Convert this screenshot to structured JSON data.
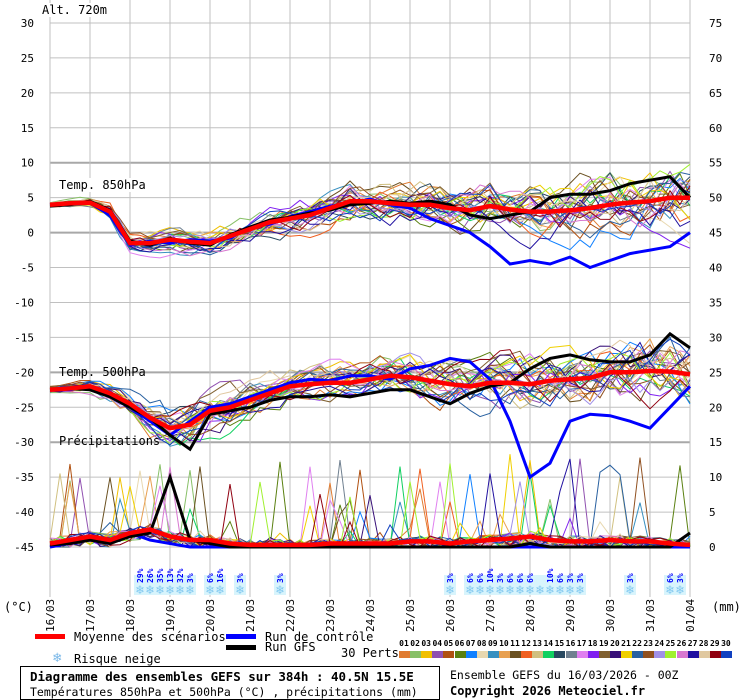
{
  "chart_data": {
    "type": "line",
    "title": "Diagramme des ensembles GEFS sur 384h : 40.5N 15.5E",
    "subtitle": "Températures 850hPa et 500hPa (°C) , précipitations (mm)",
    "left_axis": {
      "label": "(°C)",
      "range": [
        -45,
        30
      ],
      "ticks": [
        30,
        25,
        20,
        15,
        10,
        5,
        0,
        -5,
        -10,
        -15,
        -20,
        -25,
        -30,
        -35,
        -40,
        -45
      ]
    },
    "right_axis": {
      "label": "(mm)",
      "range": [
        0,
        75
      ],
      "ticks": [
        75,
        70,
        65,
        60,
        55,
        50,
        45,
        40,
        35,
        30,
        25,
        20,
        15,
        10,
        5,
        0
      ]
    },
    "x_step_hours": 12,
    "x_hours_range": [
      0,
      384
    ],
    "x_tick_labels": [
      "16/03",
      "17/03",
      "18/03",
      "19/03",
      "20/03",
      "21/03",
      "22/03",
      "23/03",
      "24/03",
      "25/03",
      "26/03",
      "27/03",
      "28/03",
      "29/03",
      "30/03",
      "31/03",
      "01/04"
    ],
    "panel_labels": {
      "t850": "Temp. 850hPa",
      "t500": "Temp. 500hPa",
      "precip": "Précipitations"
    },
    "altitude": "Alt. 720m",
    "t850": {
      "mean": [
        4,
        4.2,
        4.3,
        3,
        -1.5,
        -1.5,
        -1,
        -1.3,
        -1.5,
        -0.5,
        0.5,
        1.5,
        2,
        2.5,
        3.5,
        4.5,
        4.5,
        4.2,
        4,
        4,
        3.5,
        3.2,
        3.8,
        3.3,
        3,
        3,
        3.2,
        3.5,
        4,
        4.3,
        4.5,
        5,
        5
      ],
      "control": [
        4,
        4.3,
        4.2,
        2.5,
        -1.8,
        -1.2,
        -1.5,
        -1,
        -1.2,
        -0.8,
        0.8,
        1.2,
        2.3,
        3,
        3.8,
        4.2,
        4.8,
        4,
        3.5,
        2,
        1,
        0,
        -2,
        -4.5,
        -4,
        -4.5,
        -3.5,
        -5,
        -4,
        -3,
        -2.5,
        -2,
        0
      ],
      "gfs": [
        3.8,
        4,
        4.5,
        3.2,
        -1.2,
        -1.8,
        -0.8,
        -1.5,
        -1.8,
        -0.3,
        0.8,
        1.8,
        2.2,
        2.8,
        3.2,
        4,
        4.2,
        4.5,
        4.2,
        4.5,
        4,
        2.5,
        2,
        2.5,
        3,
        5,
        5.5,
        5.5,
        6,
        7,
        7.5,
        8,
        5
      ],
      "spread": [
        0.3,
        0.4,
        0.5,
        0.8,
        1,
        1,
        1.1,
        1.2,
        1.2,
        1.3,
        1.4,
        1.5,
        1.6,
        1.7,
        1.8,
        2,
        2,
        2.1,
        2.2,
        2.3,
        2.4,
        2.5,
        2.6,
        2.7,
        2.8,
        2.9,
        3,
        3.1,
        3.2,
        3.3,
        3.4,
        3.5,
        3.6
      ]
    },
    "t500": {
      "mean": [
        -22.5,
        -22.3,
        -22,
        -23,
        -24.5,
        -26.5,
        -28,
        -27.5,
        -25.5,
        -25,
        -24,
        -23,
        -22,
        -21.7,
        -21.5,
        -21.5,
        -21,
        -20.5,
        -20.7,
        -21.2,
        -21.7,
        -22,
        -21.5,
        -21.5,
        -21.7,
        -21.2,
        -21,
        -20.8,
        -20,
        -20,
        -19.8,
        -19.9,
        -20.3
      ],
      "control": [
        -22.5,
        -22.5,
        -22,
        -23.5,
        -25,
        -27,
        -29,
        -27,
        -25,
        -24.5,
        -23.5,
        -22.5,
        -21.5,
        -21,
        -21.2,
        -20.5,
        -20.5,
        -21,
        -19.5,
        -19,
        -18,
        -18.5,
        -21,
        -27,
        -35,
        -33,
        -27,
        -26,
        -26.2,
        -27,
        -28,
        -25,
        -22
      ],
      "gfs": [
        -22.5,
        -22.3,
        -22.5,
        -23.5,
        -25,
        -26.5,
        -29,
        -31,
        -26,
        -25.5,
        -25,
        -24,
        -23.5,
        -23.5,
        -23.2,
        -23.5,
        -23,
        -22.5,
        -22.5,
        -23.5,
        -24.5,
        -23,
        -22,
        -21.5,
        -19.5,
        -18,
        -17.5,
        -18.2,
        -18.5,
        -18.5,
        -17.5,
        -14.5,
        -16.5
      ],
      "spread": [
        0.4,
        0.5,
        0.7,
        1,
        1.3,
        1.8,
        2.2,
        2.4,
        2.5,
        2.3,
        2,
        1.8,
        1.8,
        1.9,
        2,
        2,
        2.1,
        2.2,
        2.3,
        2.4,
        2.5,
        2.6,
        2.7,
        2.8,
        2.9,
        3,
        3,
        3.1,
        3.2,
        3.3,
        3.4,
        3.5,
        3.6
      ]
    },
    "precip": {
      "mean": [
        0.5,
        1,
        1.5,
        1,
        2,
        2.5,
        1.5,
        1,
        1,
        0.5,
        0.3,
        0.3,
        0.3,
        0.3,
        0.5,
        0.5,
        0.5,
        0.5,
        0.8,
        0.8,
        0.5,
        0.8,
        1,
        1.2,
        1.5,
        1,
        0.8,
        0.8,
        1,
        0.8,
        0.8,
        0.5,
        0.3
      ],
      "control": [
        0,
        0.5,
        1,
        0.5,
        2,
        1,
        0.5,
        0,
        0,
        0,
        0,
        0,
        0,
        0,
        0,
        0,
        0,
        0,
        0,
        0,
        0,
        0,
        0,
        0,
        0,
        0,
        0,
        0,
        0,
        0,
        0,
        0,
        0
      ],
      "gfs": [
        0.3,
        0.5,
        1,
        0.5,
        1.5,
        2,
        10,
        1,
        0.5,
        0,
        0,
        0,
        0,
        0,
        0,
        0,
        0,
        0,
        0,
        0,
        0,
        0,
        0,
        0,
        0.5,
        0,
        0,
        0,
        0,
        0,
        0,
        0,
        2
      ]
    },
    "legend": {
      "mean": "Moyenne des scénarios",
      "control": "Run de contrôle",
      "gfs": "Run GFS",
      "snow": "Risque neige",
      "perts": "30 Perts."
    },
    "colors": {
      "mean": "#ff0000",
      "control": "#0000ff",
      "gfs": "#000000",
      "snow": "#80c8f0",
      "grid": "#c0c0c0"
    },
    "members": [
      {
        "id": "01",
        "color": "#e07b30"
      },
      {
        "id": "02",
        "color": "#88c068"
      },
      {
        "id": "03",
        "color": "#f0c000"
      },
      {
        "id": "04",
        "color": "#9050b0"
      },
      {
        "id": "05",
        "color": "#b05010"
      },
      {
        "id": "06",
        "color": "#5a8010"
      },
      {
        "id": "07",
        "color": "#1080ff"
      },
      {
        "id": "08",
        "color": "#e8d8b0"
      },
      {
        "id": "09",
        "color": "#3890c0"
      },
      {
        "id": "10",
        "color": "#e8a050"
      },
      {
        "id": "11",
        "color": "#6a5020"
      },
      {
        "id": "12",
        "color": "#f06020"
      },
      {
        "id": "13",
        "color": "#d0c080"
      },
      {
        "id": "14",
        "color": "#10d060"
      },
      {
        "id": "15",
        "color": "#284860"
      },
      {
        "id": "16",
        "color": "#708090"
      },
      {
        "id": "17",
        "color": "#e080f0"
      },
      {
        "id": "18",
        "color": "#8020f0"
      },
      {
        "id": "19",
        "color": "#806030"
      },
      {
        "id": "20",
        "color": "#381078"
      },
      {
        "id": "21",
        "color": "#f0d000"
      },
      {
        "id": "22",
        "color": "#2860a0"
      },
      {
        "id": "23",
        "color": "#905020"
      },
      {
        "id": "24",
        "color": "#a090e8"
      },
      {
        "id": "25",
        "color": "#a0f030"
      },
      {
        "id": "26",
        "color": "#d878d0"
      },
      {
        "id": "27",
        "color": "#2010a0"
      },
      {
        "id": "28",
        "color": "#e0c8a0"
      },
      {
        "id": "29",
        "color": "#900010"
      },
      {
        "id": "30",
        "color": "#1040c0"
      }
    ],
    "snow_risk": [
      {
        "hour": 54,
        "pct": "29%"
      },
      {
        "hour": 60,
        "pct": "26%"
      },
      {
        "hour": 66,
        "pct": "35%"
      },
      {
        "hour": 72,
        "pct": "13%"
      },
      {
        "hour": 78,
        "pct": "32%"
      },
      {
        "hour": 84,
        "pct": "3%"
      },
      {
        "hour": 96,
        "pct": "6%"
      },
      {
        "hour": 102,
        "pct": "16%"
      },
      {
        "hour": 114,
        "pct": "3%"
      },
      {
        "hour": 138,
        "pct": "3%"
      },
      {
        "hour": 240,
        "pct": "3%"
      },
      {
        "hour": 252,
        "pct": "6%"
      },
      {
        "hour": 258,
        "pct": "6%"
      },
      {
        "hour": 264,
        "pct": "10%"
      },
      {
        "hour": 270,
        "pct": "3%"
      },
      {
        "hour": 276,
        "pct": "6%"
      },
      {
        "hour": 282,
        "pct": "6%"
      },
      {
        "hour": 288,
        "pct": "6%"
      },
      {
        "hour": 294,
        "pct": ""
      },
      {
        "hour": 300,
        "pct": "10%"
      },
      {
        "hour": 306,
        "pct": "6%"
      },
      {
        "hour": 312,
        "pct": "3%"
      },
      {
        "hour": 318,
        "pct": "3%"
      },
      {
        "hour": 348,
        "pct": "3%"
      },
      {
        "hour": 372,
        "pct": "6%"
      },
      {
        "hour": 378,
        "pct": "3%"
      }
    ]
  },
  "footer": {
    "title": "Diagramme des ensembles GEFS sur 384h : 40.5N 15.5E",
    "subtitle": "Températures 850hPa et 500hPa (°C) , précipitations (mm)",
    "run": "Ensemble GEFS du 16/03/2026 - 00Z",
    "copyright": "Copyright 2026 Meteociel.fr"
  }
}
